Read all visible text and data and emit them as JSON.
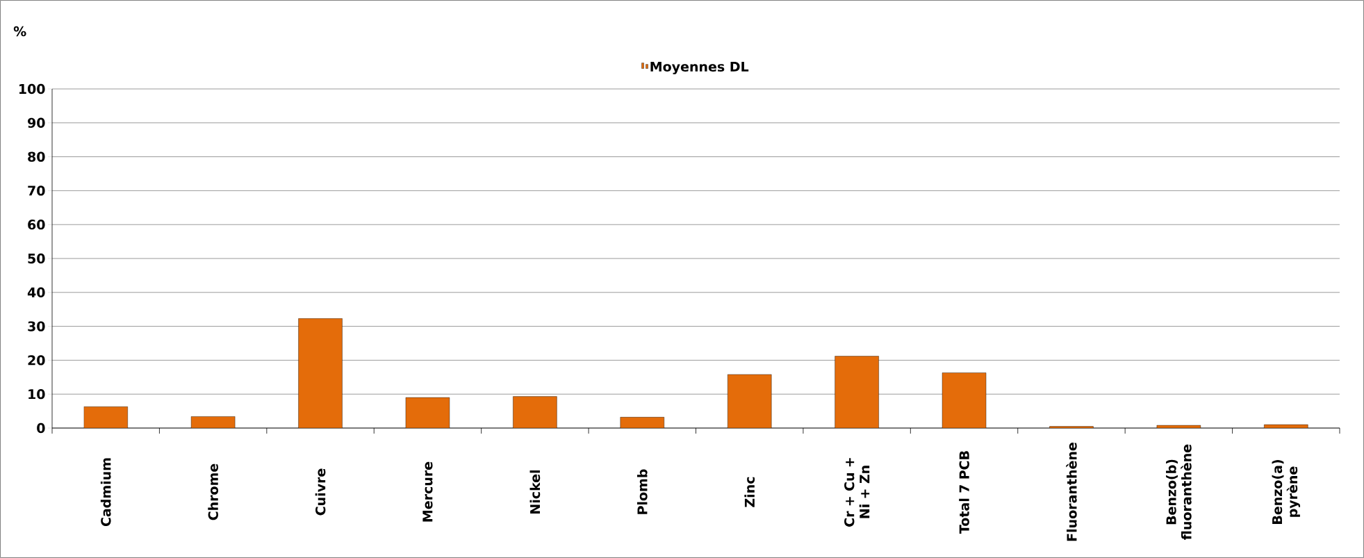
{
  "chart_data": {
    "type": "bar",
    "ylabel": "%",
    "categories": [
      "Cadmium",
      "Chrome",
      "Cuivre",
      "Mercure",
      "Nickel",
      "Plomb",
      "Zinc",
      "Cr + Cu + Ni + Zn",
      "Total 7 PCB",
      "Fluoranthène",
      "Benzo(b) fluoranthène",
      "Benzo(a) pyrène"
    ],
    "series": [
      {
        "name": "Moyennes DL",
        "color": "#e46c0a",
        "values": [
          6.3,
          3.4,
          32.3,
          9.0,
          9.3,
          3.2,
          15.8,
          21.2,
          16.3,
          0.5,
          0.8,
          1.0
        ]
      }
    ],
    "ylim": [
      0,
      100
    ],
    "yticks": [
      0,
      10,
      20,
      30,
      40,
      50,
      60,
      70,
      80,
      90,
      100
    ],
    "grid": "y",
    "legend": "top"
  }
}
